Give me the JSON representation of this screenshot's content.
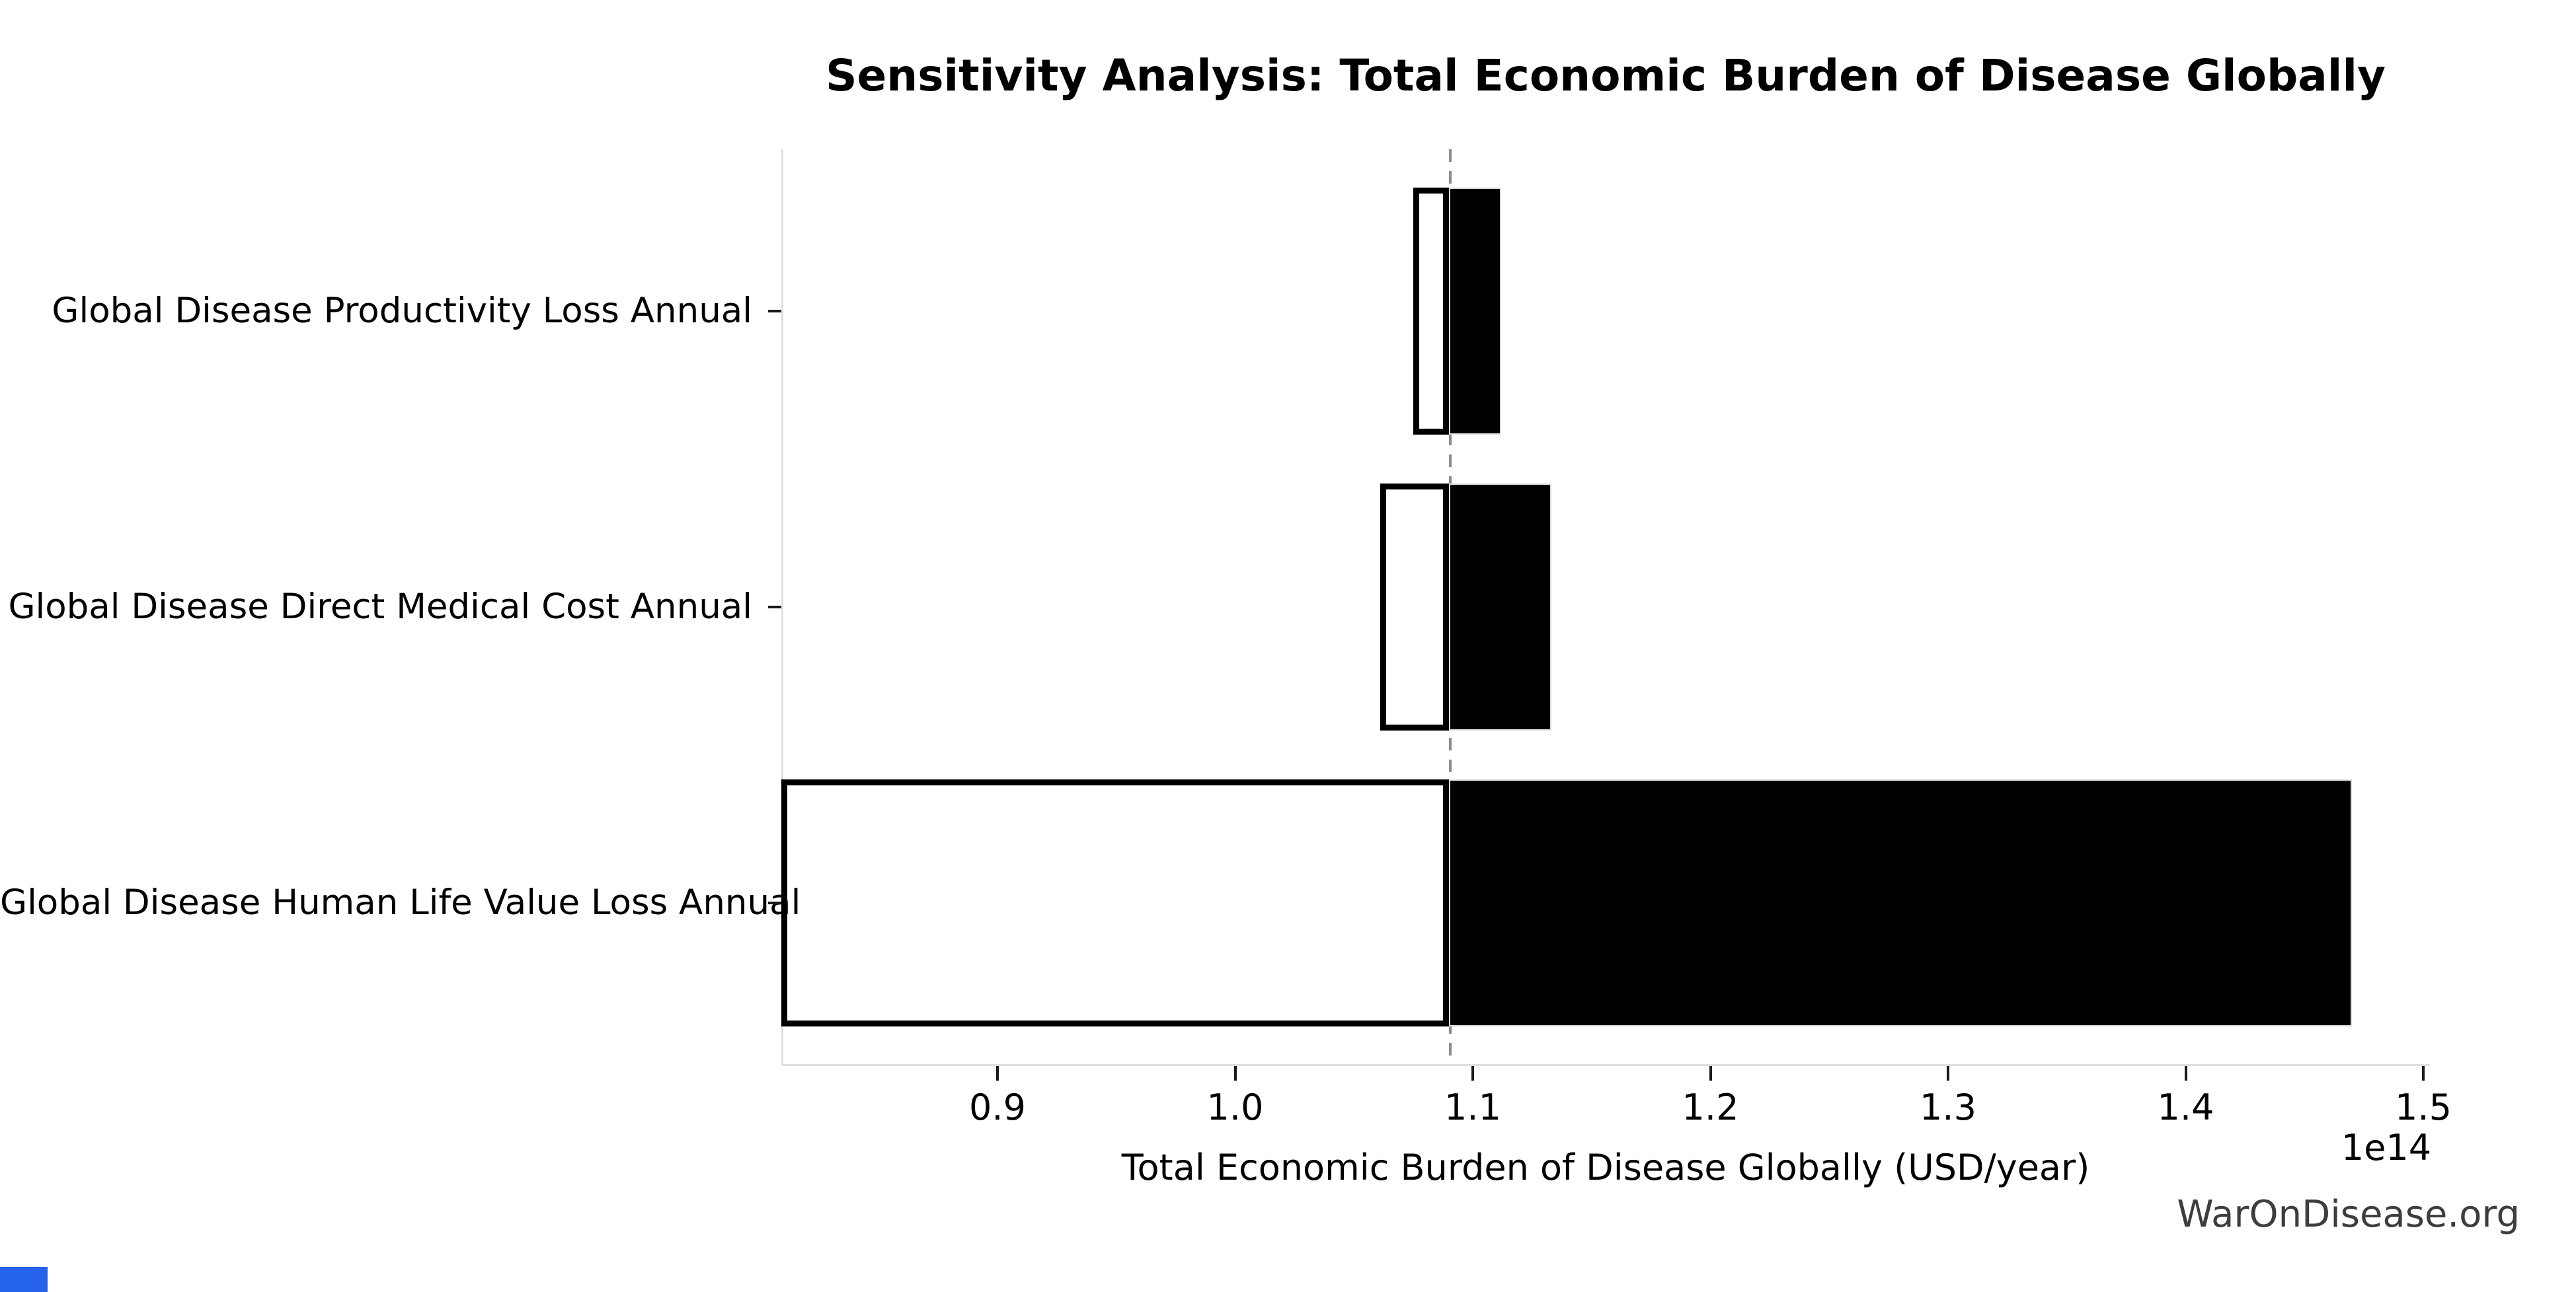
{
  "title": {
    "text": "Sensitivity Analysis: Total Economic Burden of Disease Globally"
  },
  "watermark": {
    "text": "WarOnDisease.org",
    "color": "#3d3d3d"
  },
  "corner_square": {
    "color": "#2563eb"
  },
  "chart_data": {
    "type": "bar",
    "variant": "tornado-sensitivity",
    "orientation": "horizontal",
    "title": "Sensitivity Analysis: Total Economic Burden of Disease Globally",
    "xlabel": "Total Economic Burden of Disease Globally (USD/year)",
    "x_scale_offset_label": "1e14",
    "x_units": "1e14 USD/year",
    "xlim": [
      0.809,
      1.502
    ],
    "x_tick_values": [
      0.9,
      1.0,
      1.1,
      1.2,
      1.3,
      1.4,
      1.5
    ],
    "x_tick_labels": [
      "0.9",
      "1.0",
      "1.1",
      "1.2",
      "1.3",
      "1.4",
      "1.5"
    ],
    "baseline_value": 1.09,
    "grid": false,
    "legend": "none",
    "categories": [
      "Global Disease Productivity Loss Annual",
      "Global Disease Direct Medical Cost Annual",
      "Global Disease Human Life Value Loss Annual"
    ],
    "bars": [
      {
        "category": "Global Disease Productivity Loss Annual",
        "low": 1.075,
        "high": 1.112
      },
      {
        "category": "Global Disease Direct Medical Cost Annual",
        "low": 1.061,
        "high": 1.133
      },
      {
        "category": "Global Disease Human Life Value Loss Annual",
        "low": 0.809,
        "high": 1.47
      }
    ],
    "colors": {
      "low_bar_fill": "#ffffff",
      "low_bar_edge": "#000000",
      "high_bar_fill": "#000000",
      "high_bar_edge": "#d9d9d9",
      "baseline_line": "#8c8c8c",
      "spine": "#dfdfdf",
      "tick": "#1a1a1a",
      "text": "#000000"
    }
  }
}
